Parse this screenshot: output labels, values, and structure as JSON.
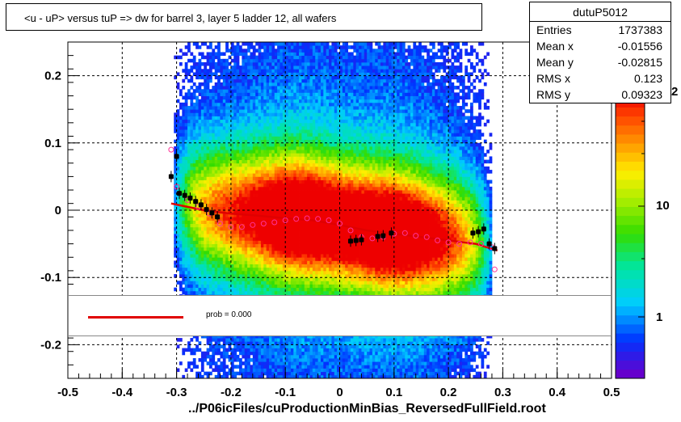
{
  "histogram": {
    "title": "<u - uP>       versus  tuP =>  dw for barrel 3, layer 5 ladder 12, all wafers",
    "footer": "../P06icFiles/cuProductionMinBias_ReversedFullField.root"
  },
  "stats": {
    "name": "dutuP5012",
    "rows": [
      {
        "label": "Entries",
        "value": "1737383"
      },
      {
        "label": "Mean x",
        "value": "-0.01556"
      },
      {
        "label": "Mean y",
        "value": "-0.02815"
      },
      {
        "label": "RMS x",
        "value": "0.123"
      },
      {
        "label": "RMS y",
        "value": "0.09323"
      }
    ]
  },
  "legend": {
    "label": "prob = 0.000",
    "line_color": "#e00000"
  },
  "palette": {
    "colorbar_labels": [
      "10",
      "1",
      "2"
    ]
  },
  "chart_data": {
    "type": "heatmap",
    "title": "<u - uP>       versus  tuP =>  dw for barrel 3, layer 5 ladder 12, all wafers",
    "xlabel": "",
    "ylabel": "",
    "xlim": [
      -0.5,
      0.5
    ],
    "ylim": [
      -0.25,
      0.25
    ],
    "x_ticks": [
      "-0.5",
      "-0.4",
      "-0.3",
      "-0.2",
      "-0.1",
      "0",
      "0.1",
      "0.2",
      "0.3",
      "0.4",
      "0.5"
    ],
    "y_ticks": [
      "-0.2",
      "-0.1",
      "0",
      "0.1",
      "0.2"
    ],
    "grid": true,
    "z_scale": "log",
    "series": [
      {
        "name": "profile-mean",
        "color": "#000000",
        "x": [
          -0.31,
          -0.3,
          -0.295,
          -0.285,
          -0.275,
          -0.265,
          -0.255,
          -0.245,
          -0.235,
          -0.225,
          0.02,
          0.03,
          0.04,
          0.07,
          0.08,
          0.095,
          0.245,
          0.255,
          0.265,
          0.275,
          0.285
        ],
        "y": [
          0.05,
          0.08,
          0.025,
          0.022,
          0.018,
          0.013,
          0.008,
          0.001,
          -0.004,
          -0.01,
          -0.046,
          -0.045,
          -0.044,
          -0.039,
          -0.038,
          -0.034,
          -0.034,
          -0.032,
          -0.028,
          -0.05,
          -0.057
        ]
      },
      {
        "name": "profile-markers",
        "color": "#ff3399",
        "x": [
          -0.31,
          -0.3,
          -0.28,
          -0.26,
          -0.24,
          -0.22,
          -0.2,
          -0.18,
          -0.16,
          -0.14,
          -0.12,
          -0.1,
          -0.08,
          -0.06,
          -0.04,
          -0.02,
          0.0,
          0.02,
          0.04,
          0.06,
          0.08,
          0.1,
          0.12,
          0.14,
          0.16,
          0.18,
          0.2,
          0.22,
          0.24,
          0.26,
          0.28,
          0.285
        ],
        "y": [
          0.09,
          0.035,
          0.015,
          0.005,
          -0.005,
          -0.02,
          -0.025,
          -0.025,
          -0.022,
          -0.02,
          -0.018,
          -0.015,
          -0.013,
          -0.012,
          -0.013,
          -0.015,
          -0.02,
          -0.03,
          -0.04,
          -0.042,
          -0.04,
          -0.035,
          -0.034,
          -0.038,
          -0.04,
          -0.045,
          -0.048,
          -0.05,
          -0.048,
          -0.05,
          -0.055,
          -0.088
        ]
      },
      {
        "name": "fit",
        "color": "#e00000",
        "x": [
          -0.31,
          -0.25,
          -0.2,
          -0.15,
          -0.1,
          -0.05,
          0.0,
          0.05,
          0.1,
          0.15,
          0.2,
          0.25,
          0.29
        ],
        "y": [
          0.01,
          0.0,
          -0.005,
          -0.008,
          -0.012,
          -0.015,
          -0.022,
          -0.03,
          -0.035,
          -0.04,
          -0.045,
          -0.05,
          -0.06
        ]
      }
    ]
  }
}
